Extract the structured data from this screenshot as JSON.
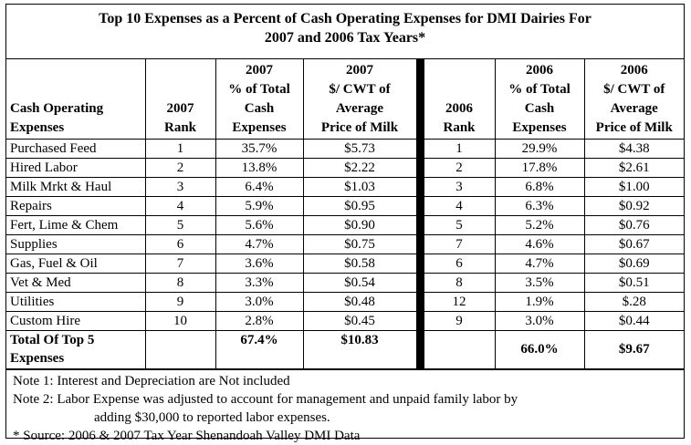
{
  "title": {
    "line1": "Top 10 Expenses as a Percent of Cash Operating Expenses for DMI Dairies For",
    "line2": "2007 and 2006 Tax Years*"
  },
  "headers": {
    "expense": [
      "Cash Operating",
      "Expenses"
    ],
    "rank2007": [
      "2007",
      "Rank"
    ],
    "pct2007": [
      "2007",
      "% of Total",
      "Cash",
      "Expenses"
    ],
    "cwt2007": [
      "2007",
      "$/ CWT of",
      "Average",
      "Price of Milk"
    ],
    "rank2006": [
      "2006",
      "Rank"
    ],
    "pct2006": [
      "2006",
      "% of Total",
      "Cash",
      "Expenses"
    ],
    "cwt2006": [
      "2006",
      "$/ CWT of",
      "Average",
      "Price of Milk"
    ]
  },
  "rows": [
    {
      "expense": "Purchased Feed",
      "rank2007": "1",
      "pct2007": "35.7%",
      "cwt2007": "$5.73",
      "rank2006": "1",
      "pct2006": "29.9%",
      "cwt2006": "$4.38"
    },
    {
      "expense": "Hired Labor",
      "rank2007": "2",
      "pct2007": "13.8%",
      "cwt2007": "$2.22",
      "rank2006": "2",
      "pct2006": "17.8%",
      "cwt2006": "$2.61"
    },
    {
      "expense": "Milk Mrkt & Haul",
      "rank2007": "3",
      "pct2007": "6.4%",
      "cwt2007": "$1.03",
      "rank2006": "3",
      "pct2006": "6.8%",
      "cwt2006": "$1.00"
    },
    {
      "expense": "Repairs",
      "rank2007": "4",
      "pct2007": "5.9%",
      "cwt2007": "$0.95",
      "rank2006": "4",
      "pct2006": "6.3%",
      "cwt2006": "$0.92"
    },
    {
      "expense": "Fert, Lime & Chem",
      "rank2007": "5",
      "pct2007": "5.6%",
      "cwt2007": "$0.90",
      "rank2006": "5",
      "pct2006": "5.2%",
      "cwt2006": "$0.76"
    },
    {
      "expense": "Supplies",
      "rank2007": "6",
      "pct2007": "4.7%",
      "cwt2007": "$0.75",
      "rank2006": "7",
      "pct2006": "4.6%",
      "cwt2006": "$0.67"
    },
    {
      "expense": "Gas, Fuel & Oil",
      "rank2007": "7",
      "pct2007": "3.6%",
      "cwt2007": "$0.58",
      "rank2006": "6",
      "pct2006": "4.7%",
      "cwt2006": "$0.69"
    },
    {
      "expense": "Vet & Med",
      "rank2007": "8",
      "pct2007": "3.3%",
      "cwt2007": "$0.54",
      "rank2006": "8",
      "pct2006": "3.5%",
      "cwt2006": "$0.51"
    },
    {
      "expense": "Utilities",
      "rank2007": "9",
      "pct2007": "3.0%",
      "cwt2007": "$0.48",
      "rank2006": "12",
      "pct2006": "1.9%",
      "cwt2006": "$.28"
    },
    {
      "expense": "Custom Hire",
      "rank2007": "10",
      "pct2007": "2.8%",
      "cwt2007": "$0.45",
      "rank2006": "9",
      "pct2006": "3.0%",
      "cwt2006": "$0.44"
    }
  ],
  "total": {
    "label": [
      "Total Of Top 5",
      "Expenses"
    ],
    "pct2007": "67.4%",
    "cwt2007": "$10.83",
    "pct2006": "66.0%",
    "cwt2006": "$9.67"
  },
  "notes": {
    "note1": "Note 1:  Interest and Depreciation are Not included",
    "note2a": "Note 2:  Labor Expense was adjusted to account for management and unpaid family labor by",
    "note2b": "adding $30,000 to reported labor expenses.",
    "source": "* Source:  2006 & 2007 Tax Year Shenandoah Valley DMI  Data"
  }
}
